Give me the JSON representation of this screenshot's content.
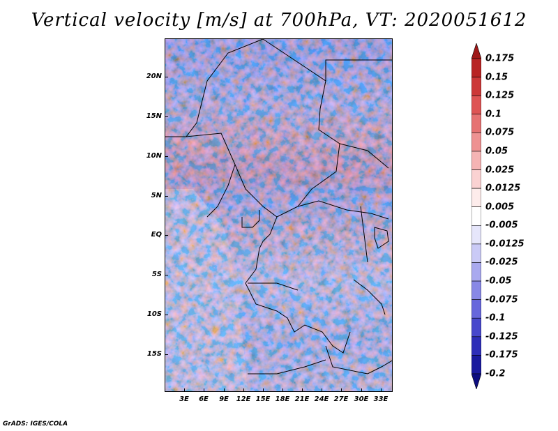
{
  "title": "Vertical velocity [m/s] at 700hPa, VT: 2020051612",
  "footer": "GrADS: IGES/COLA",
  "map": {
    "lat_labels": [
      "20N",
      "15N",
      "10N",
      "5N",
      "EQ",
      "5S",
      "10S",
      "15S"
    ],
    "lon_labels": [
      "3E",
      "6E",
      "9E",
      "12E",
      "15E",
      "18E",
      "21E",
      "24E",
      "27E",
      "30E",
      "33E"
    ]
  },
  "colorbar": {
    "labels": [
      "0.175",
      "0.15",
      "0.125",
      "0.1",
      "0.075",
      "0.05",
      "0.025",
      "0.0125",
      "0.005",
      "-0.005",
      "-0.0125",
      "-0.025",
      "-0.05",
      "-0.075",
      "-0.1",
      "-0.125",
      "-0.175",
      "-0.2"
    ],
    "colors": [
      "#a01818",
      "#b82424",
      "#cc3838",
      "#de5454",
      "#e67272",
      "#ee9292",
      "#f5b4b4",
      "#fad2d2",
      "#fdeceb",
      "#ffffff",
      "#e6e6fb",
      "#cacaf6",
      "#a9a9ef",
      "#8888e6",
      "#6767dc",
      "#4848cc",
      "#2e2eb8",
      "#1a1a9e",
      "#0d0d80"
    ]
  }
}
